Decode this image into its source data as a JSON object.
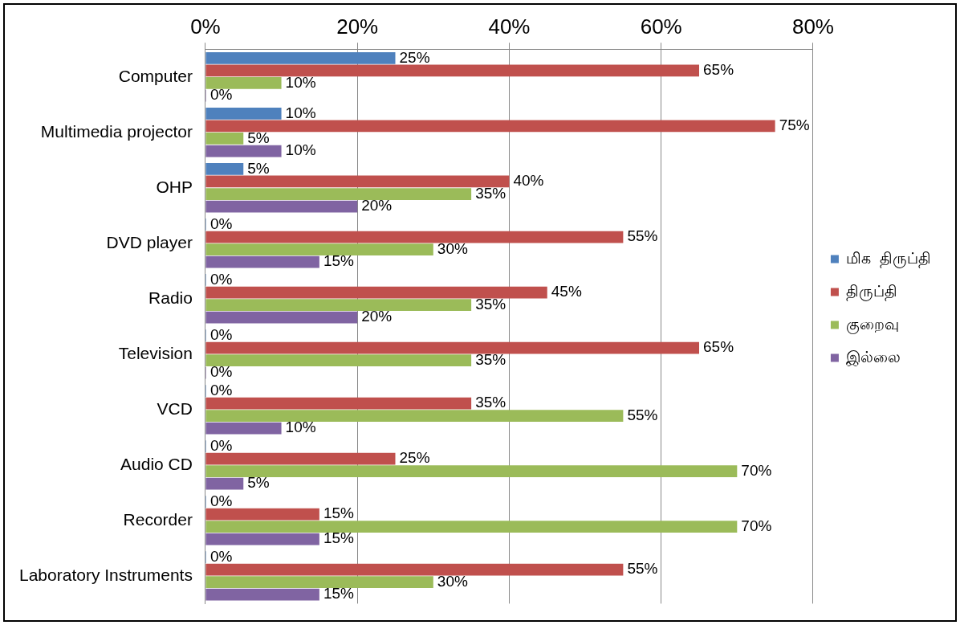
{
  "chart_data": {
    "type": "bar",
    "orientation": "horizontal",
    "categories": [
      "Computer",
      "Multimedia projector",
      "OHP",
      "DVD player",
      "Radio",
      "Television",
      "VCD",
      "Audio CD",
      "Recorder",
      "Laboratory Instruments"
    ],
    "series": [
      {
        "name": "மிக  திருப்தி",
        "color": "#4f81bd",
        "values": [
          25,
          10,
          5,
          0,
          0,
          0,
          0,
          0,
          0,
          0
        ],
        "value_labels": [
          "25%",
          "10%",
          "5%",
          "0%",
          "0%",
          "0%",
          "0%",
          "0%",
          "0%",
          "0%"
        ]
      },
      {
        "name": "திருப்தி",
        "color": "#c0504d",
        "values": [
          65,
          75,
          40,
          55,
          45,
          65,
          35,
          25,
          15,
          55
        ],
        "value_labels": [
          "65%",
          "75%",
          "40%",
          "55%",
          "45%",
          "65%",
          "35%",
          "25%",
          "15%",
          "55%"
        ]
      },
      {
        "name": "குறைவு",
        "color": "#9bbb59",
        "values": [
          10,
          5,
          35,
          30,
          35,
          35,
          55,
          70,
          70,
          30
        ],
        "value_labels": [
          "10%",
          "5%",
          "35%",
          "30%",
          "35%",
          "35%",
          "55%",
          "70%",
          "70%",
          "30%"
        ]
      },
      {
        "name": "இல்லை",
        "color": "#8064a2",
        "values": [
          0,
          10,
          20,
          15,
          20,
          0,
          10,
          5,
          15,
          15
        ],
        "value_labels": [
          "0%",
          "10%",
          "20%",
          "15%",
          "20%",
          "0%",
          "10%",
          "5%",
          "15%",
          "15%"
        ]
      }
    ],
    "xlim": [
      0,
      80
    ],
    "xticks": [
      {
        "value": 0,
        "label": "0%"
      },
      {
        "value": 20,
        "label": "20%"
      },
      {
        "value": 40,
        "label": "40%"
      },
      {
        "value": 60,
        "label": "60%"
      },
      {
        "value": 80,
        "label": "80%"
      }
    ],
    "grid": "x",
    "legend": "right"
  }
}
